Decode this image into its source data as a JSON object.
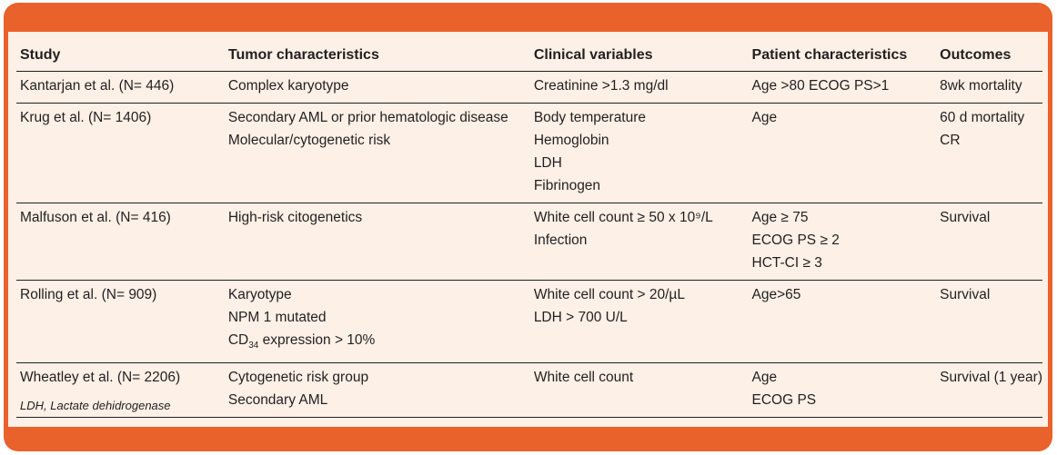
{
  "headers": [
    "Study",
    "Tumor characteristics",
    "Clinical variables",
    "Patient characteristics",
    "Outcomes"
  ],
  "rows": [
    {
      "study": "Kantarjan et al. (N= 446)",
      "tumor": [
        "Complex karyotype"
      ],
      "clinical": [
        "Creatinine >1.3 mg/dl"
      ],
      "patient": [
        "Age >80 ECOG PS>1"
      ],
      "outcomes": [
        "8wk mortality"
      ]
    },
    {
      "study": "Krug et al. (N= 1406)",
      "tumor": [
        "Secondary AML or prior hematologic disease",
        "Molecular/cytogenetic risk"
      ],
      "clinical": [
        "Body temperature",
        "Hemoglobin",
        "LDH",
        "Fibrinogen"
      ],
      "patient": [
        "Age"
      ],
      "outcomes": [
        "60 d mortality",
        "CR"
      ]
    },
    {
      "study": "Malfuson et al. (N= 416)",
      "tumor": [
        "High-risk citogenetics"
      ],
      "clinical": [
        "White cell count ≥ 50 x 10⁹/L",
        "Infection"
      ],
      "patient": [
        "Age ≥ 75",
        "ECOG PS ≥ 2",
        "HCT-CI ≥ 3"
      ],
      "outcomes": [
        "Survival"
      ]
    },
    {
      "study": "Rolling et al. (N= 909)",
      "tumor": [
        "Karyotype",
        "NPM 1 mutated",
        "CD34 expression > 10%"
      ],
      "clinical": [
        "White cell count > 20/µL",
        "LDH > 700 U/L"
      ],
      "patient": [
        "Age>65"
      ],
      "outcomes": [
        "Survival"
      ]
    },
    {
      "study": "Wheatley et al. (N= 2206)",
      "tumor": [
        "Cytogenetic risk group",
        "Secondary AML"
      ],
      "clinical": [
        "White cell count"
      ],
      "patient": [
        "Age",
        "ECOG PS"
      ],
      "outcomes": [
        "Survival (1 year)"
      ]
    }
  ],
  "footnote": "LDH, Lactate dehidrogenase"
}
